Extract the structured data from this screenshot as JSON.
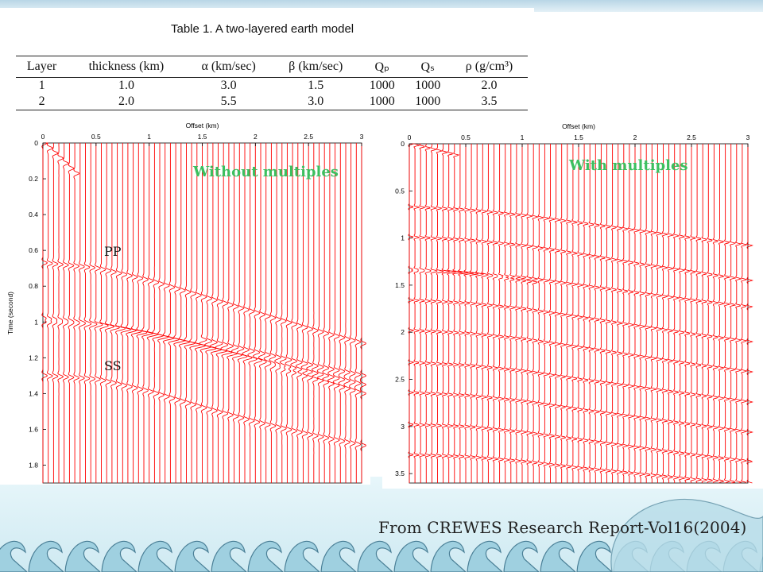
{
  "table": {
    "caption": "Table 1. A two-layered earth model",
    "headers": [
      "Layer",
      "thickness (km)",
      "α (km/sec)",
      "β (km/sec)",
      "Qₚ",
      "Qₛ",
      "ρ (g/cm³)"
    ],
    "rows": [
      [
        "1",
        "1.0",
        "3.0",
        "1.5",
        "1000",
        "1000",
        "2.0"
      ],
      [
        "2",
        "2.0",
        "5.5",
        "3.0",
        "1000",
        "1000",
        "3.5"
      ]
    ]
  },
  "chart_data": [
    {
      "type": "line",
      "title": "Without multiples",
      "xlabel": "Offset (km)",
      "ylabel": "Time (second)",
      "xlim": [
        0,
        3
      ],
      "ylim": [
        0,
        1.9
      ],
      "y_reversed": true,
      "xticks": [
        0,
        0.5,
        1,
        1.5,
        2,
        2.5,
        3
      ],
      "xtick_labels": [
        "0",
        "0.5",
        "1",
        "1.5",
        "2",
        "2.5",
        "3"
      ],
      "yticks": [
        0,
        0.2,
        0.4,
        0.6,
        0.8,
        1,
        1.2,
        1.4,
        1.6,
        1.8
      ],
      "ytick_labels": [
        "0",
        "0.2",
        "0.4",
        "0.6",
        "0.8",
        "1",
        "1.2",
        "1.4",
        "1.6",
        "1.8"
      ],
      "trace_count": 61,
      "trace_color": "#ff0000",
      "annotations": [
        {
          "text": "PP",
          "x": 0.5,
          "y": 0.63
        },
        {
          "text": "SS",
          "x": 0.5,
          "y": 1.33
        }
      ],
      "events": [
        {
          "x": [
            0,
            0.3
          ],
          "y": [
            0,
            0.17
          ]
        },
        {
          "x": [
            0,
            0.5,
            1,
            1.5,
            2,
            2.5,
            3
          ],
          "y": [
            0.67,
            0.7,
            0.77,
            0.86,
            0.95,
            1.04,
            1.12
          ]
        },
        {
          "x": [
            0,
            0.5,
            1,
            1.5,
            2,
            2.5,
            3
          ],
          "y": [
            0.98,
            1.01,
            1.07,
            1.14,
            1.22,
            1.31,
            1.4
          ]
        },
        {
          "x": [
            0,
            0.5,
            1,
            1.5,
            2,
            2.5,
            3
          ],
          "y": [
            1.0,
            1.02,
            1.07,
            1.14,
            1.21,
            1.28,
            1.35
          ]
        },
        {
          "x": [
            0,
            0.5,
            1,
            1.5,
            2,
            2.5,
            3
          ],
          "y": [
            1.3,
            1.32,
            1.39,
            1.48,
            1.56,
            1.63,
            1.69
          ]
        },
        {
          "x": [
            1.5,
            2,
            2.5,
            3
          ],
          "y": [
            1.1,
            1.17,
            1.24,
            1.3
          ]
        }
      ]
    },
    {
      "type": "line",
      "title": "With multiples",
      "xlabel": "Offset (km)",
      "ylabel": "Time (second)",
      "xlim": [
        0,
        3
      ],
      "ylim": [
        0,
        3.6
      ],
      "y_reversed": true,
      "xticks": [
        0,
        0.5,
        1,
        1.5,
        2,
        2.5,
        3
      ],
      "xtick_labels": [
        "0",
        "0.5",
        "1",
        "1.5",
        "2",
        "2.5",
        "3"
      ],
      "yticks": [
        0,
        0.5,
        1,
        1.5,
        2,
        2.5,
        3,
        3.5
      ],
      "ytick_labels": [
        "0",
        "0.5",
        "1",
        "1.5",
        "2",
        "2.5",
        "3",
        "3.5"
      ],
      "trace_count": 61,
      "trace_color": "#ff0000",
      "events": [
        {
          "x": [
            0,
            0.4
          ],
          "y": [
            0,
            0.12
          ]
        },
        {
          "x": [
            0,
            0.5,
            1,
            1.5,
            2,
            2.5,
            3
          ],
          "y": [
            0.67,
            0.7,
            0.76,
            0.84,
            0.92,
            1.0,
            1.08
          ]
        },
        {
          "x": [
            0,
            0.5,
            1,
            1.5,
            2,
            2.5,
            3
          ],
          "y": [
            0.99,
            1.02,
            1.08,
            1.17,
            1.27,
            1.36,
            1.45
          ]
        },
        {
          "x": [
            0,
            0.4,
            0.8,
            1.1
          ],
          "y": [
            1.33,
            1.36,
            1.42,
            1.47
          ]
        },
        {
          "x": [
            0,
            0.5,
            1,
            1.5,
            2,
            2.5,
            3
          ],
          "y": [
            1.35,
            1.37,
            1.42,
            1.5,
            1.58,
            1.66,
            1.73
          ]
        },
        {
          "x": [
            0,
            0.5,
            1,
            1.5,
            2,
            2.5,
            3
          ],
          "y": [
            1.66,
            1.69,
            1.75,
            1.84,
            1.93,
            2.02,
            2.1
          ]
        },
        {
          "x": [
            0,
            0.5,
            1,
            1.5,
            2,
            2.5,
            3
          ],
          "y": [
            1.98,
            2.01,
            2.07,
            2.16,
            2.25,
            2.34,
            2.42
          ]
        },
        {
          "x": [
            0,
            0.5,
            1,
            1.5,
            2,
            2.5,
            3
          ],
          "y": [
            2.32,
            2.35,
            2.41,
            2.5,
            2.58,
            2.66,
            2.74
          ]
        },
        {
          "x": [
            0,
            0.5,
            1,
            1.5,
            2,
            2.5,
            3
          ],
          "y": [
            2.64,
            2.67,
            2.73,
            2.82,
            2.9,
            2.98,
            3.06
          ]
        },
        {
          "x": [
            0,
            0.5,
            1,
            1.5,
            2,
            2.5,
            3
          ],
          "y": [
            2.98,
            3.0,
            3.06,
            3.14,
            3.22,
            3.3,
            3.37
          ]
        },
        {
          "x": [
            0,
            0.5,
            1,
            1.5,
            2,
            2.5,
            3
          ],
          "y": [
            3.3,
            3.32,
            3.37,
            3.44,
            3.5,
            3.56,
            3.6
          ]
        }
      ]
    }
  ],
  "footer": {
    "source_note": "From CREWES Research Report-Vol16(2004)"
  }
}
